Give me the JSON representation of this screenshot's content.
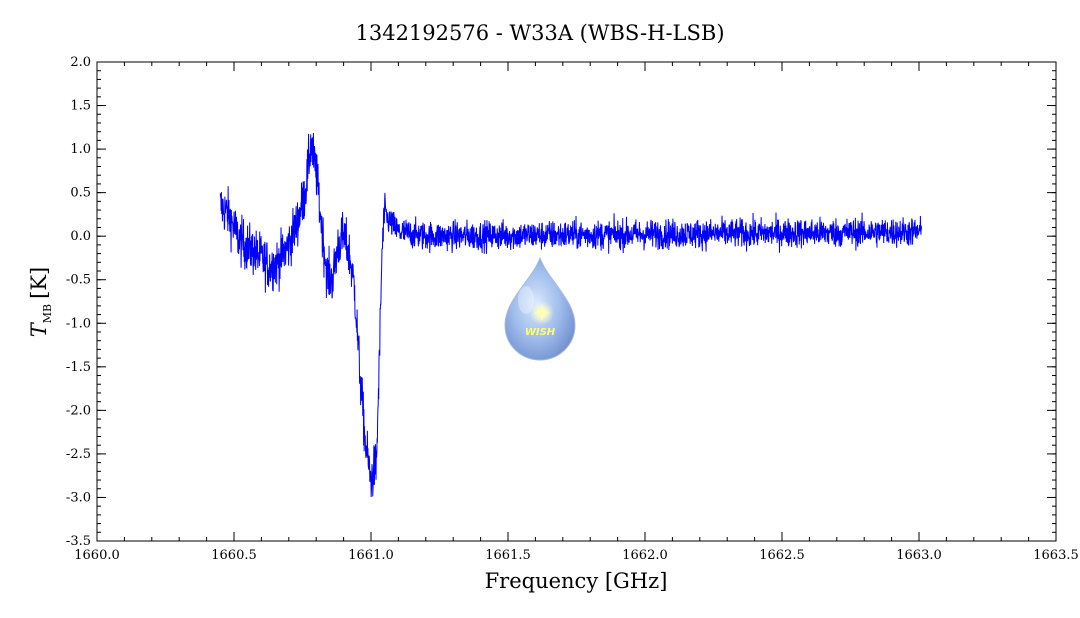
{
  "chart_data": {
    "type": "line",
    "title": "1342192576 - W33A (WBS-H-LSB)",
    "xlabel": "Frequency [GHz]",
    "ylabel_main": "T",
    "ylabel_sub": "MB",
    "ylabel_unit": "[K]",
    "xlim": [
      1660.0,
      1663.5
    ],
    "ylim": [
      -3.5,
      2.0
    ],
    "xticks": [
      "1660.0",
      "1660.5",
      "1661.0",
      "1661.5",
      "1662.0",
      "1662.5",
      "1663.0",
      "1663.5"
    ],
    "yticks": [
      "2.0",
      "1.5",
      "1.0",
      "0.5",
      "0.0",
      "-0.5",
      "-1.0",
      "-1.5",
      "-2.0",
      "-2.5",
      "-3.0",
      "-3.5"
    ],
    "series": [
      {
        "color": "#0000ff",
        "x_range": [
          1660.45,
          1663.01
        ],
        "profile": [
          [
            1660.45,
            0.35
          ],
          [
            1660.48,
            0.25
          ],
          [
            1660.52,
            -0.05
          ],
          [
            1660.56,
            -0.15
          ],
          [
            1660.6,
            -0.25
          ],
          [
            1660.63,
            -0.35
          ],
          [
            1660.66,
            -0.3
          ],
          [
            1660.7,
            -0.1
          ],
          [
            1660.73,
            0.15
          ],
          [
            1660.76,
            0.5
          ],
          [
            1660.78,
            1.05
          ],
          [
            1660.8,
            0.75
          ],
          [
            1660.82,
            0.1
          ],
          [
            1660.84,
            -0.45
          ],
          [
            1660.86,
            -0.5
          ],
          [
            1660.88,
            -0.1
          ],
          [
            1660.9,
            0.0
          ],
          [
            1660.92,
            -0.2
          ],
          [
            1660.94,
            -0.6
          ],
          [
            1660.96,
            -1.6
          ],
          [
            1660.98,
            -2.4
          ],
          [
            1661.0,
            -2.8
          ],
          [
            1661.02,
            -2.6
          ],
          [
            1661.03,
            -1.5
          ],
          [
            1661.04,
            -0.2
          ],
          [
            1661.05,
            0.3
          ],
          [
            1661.06,
            0.2
          ],
          [
            1661.1,
            0.05
          ],
          [
            1661.2,
            0.0
          ],
          [
            1663.01,
            0.05
          ]
        ],
        "noise_sigma": 0.12
      }
    ],
    "grid": false
  },
  "watermark": {
    "text": "WISH"
  }
}
